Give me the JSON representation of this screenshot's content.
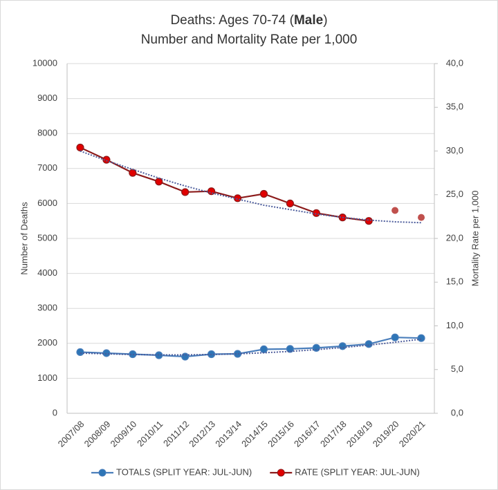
{
  "chart_data": {
    "type": "line",
    "title_parts": [
      "Deaths: Ages 70-74 (",
      "Male",
      ")"
    ],
    "subtitle": "Number and Mortality Rate per 1,000",
    "y_label": "Number of Deaths",
    "y2_label": "Mortality Rate per 1,000",
    "categories": [
      "2007/08",
      "2008/09",
      "2009/10",
      "2010/11",
      "2011/12",
      "2012/13",
      "2013/14",
      "2014/15",
      "2015/16",
      "2016/17",
      "2017/18",
      "2018/19",
      "2019/20",
      "2020/21"
    ],
    "ylim": [
      0,
      10000
    ],
    "yticks": [
      0,
      1000,
      2000,
      3000,
      4000,
      5000,
      6000,
      7000,
      8000,
      9000,
      10000
    ],
    "y2lim": [
      0,
      40
    ],
    "y2ticks": [
      {
        "value": 0,
        "label": "0,0"
      },
      {
        "value": 5,
        "label": "5,0"
      },
      {
        "value": 10,
        "label": "10,0"
      },
      {
        "value": 15,
        "label": "15,0"
      },
      {
        "value": 20,
        "label": "20,0"
      },
      {
        "value": 25,
        "label": "25,0"
      },
      {
        "value": 30,
        "label": "30,0"
      },
      {
        "value": 35,
        "label": "35,0"
      },
      {
        "value": 40,
        "label": "40,0"
      }
    ],
    "grid": true,
    "series": [
      {
        "name": "TOTALS (SPLIT YEAR: JUL-JUN)",
        "color": "#4a7ebb",
        "marker_color": "#2e75b6",
        "values": [
          1750,
          1720,
          1690,
          1660,
          1620,
          1690,
          1700,
          1830,
          1840,
          1870,
          1920,
          1980,
          2170,
          2150
        ]
      },
      {
        "name": "RATE (SPLIT YEAR: JUL-JUN)",
        "color": "#8b1a1a",
        "marker_color": "#e00000",
        "axis": "y2",
        "values": [
          30.4,
          29.0,
          27.5,
          26.5,
          25.3,
          25.4,
          24.6,
          25.1,
          24.0,
          22.9,
          22.4,
          22.0,
          null,
          null
        ]
      },
      {
        "color": "#c0504d",
        "axis": "y2",
        "line": false,
        "values": [
          null,
          null,
          null,
          null,
          null,
          null,
          null,
          null,
          null,
          null,
          null,
          null,
          23.2,
          22.4
        ]
      },
      {
        "color": "#4a5a9a",
        "dotted": true,
        "marker": false,
        "values": [
          1720,
          1700,
          1680,
          1670,
          1670,
          1680,
          1700,
          1730,
          1770,
          1820,
          1880,
          1950,
          2030,
          2120
        ]
      },
      {
        "color": "#4a5a9a",
        "dotted": true,
        "marker": false,
        "axis": "y2",
        "values": [
          30.0,
          28.9,
          27.9,
          26.9,
          26.0,
          25.2,
          24.5,
          23.8,
          23.3,
          22.8,
          22.4,
          22.1,
          21.9,
          21.8
        ]
      }
    ]
  }
}
